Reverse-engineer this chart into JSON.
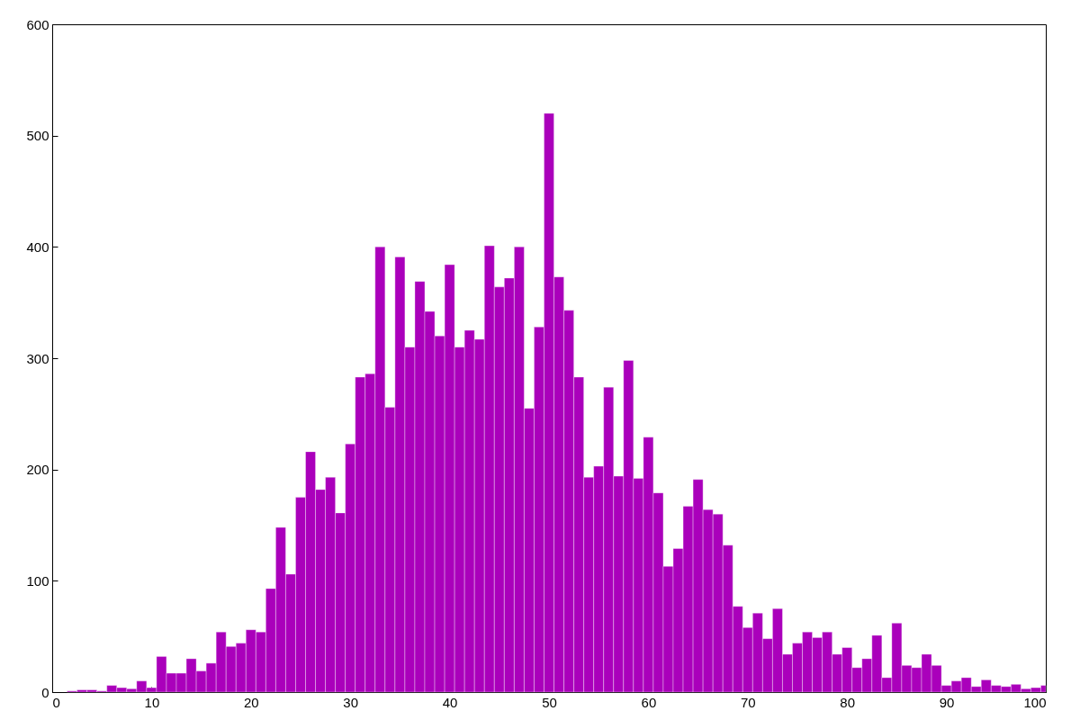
{
  "chart_data": {
    "type": "histogram",
    "bins": [
      1.5,
      2.5,
      3.5,
      4.5,
      5.5,
      6.5,
      7.5,
      8.5,
      9.5,
      10.5,
      11.5,
      12.5,
      13.5,
      14.5,
      15.5,
      16.5,
      17.5,
      18.5,
      19.5,
      20.5,
      21.5,
      22.5,
      23.5,
      24.5,
      25.5,
      26.5,
      27.5,
      28.5,
      29.5,
      30.5,
      31.5,
      32.5,
      33.5,
      34.5,
      35.5,
      36.5,
      37.5,
      38.5,
      39.5,
      40.5,
      41.5,
      42.5,
      43.5,
      44.5,
      45.5,
      46.5,
      47.5,
      48.5,
      49.5,
      50.5,
      51.5,
      52.5,
      53.5,
      54.5,
      55.5,
      56.5,
      57.5,
      58.5,
      59.5,
      60.5,
      61.5,
      62.5,
      63.5,
      64.5,
      65.5,
      66.5,
      67.5,
      68.5,
      69.5,
      70.5,
      71.5,
      72.5,
      73.5,
      74.5,
      75.5,
      76.5,
      77.5,
      78.5,
      79.5,
      80.5,
      81.5,
      82.5,
      83.5,
      84.5,
      85.5,
      86.5,
      87.5,
      88.5,
      89.5,
      90.5,
      91.5,
      92.5,
      93.5,
      94.5,
      95.5,
      96.5,
      97.5,
      98.5,
      99.5,
      100
    ],
    "values": [
      1,
      2,
      2,
      1,
      6,
      4,
      3,
      10,
      4,
      32,
      17,
      17,
      30,
      19,
      26,
      54,
      41,
      44,
      56,
      54,
      93,
      148,
      106,
      175,
      216,
      182,
      193,
      161,
      223,
      283,
      286,
      400,
      256,
      391,
      310,
      369,
      342,
      320,
      384,
      310,
      325,
      317,
      401,
      364,
      372,
      400,
      255,
      328,
      520,
      373,
      343,
      283,
      193,
      203,
      274,
      194,
      298,
      192,
      229,
      179,
      113,
      129,
      167,
      191,
      164,
      160,
      132,
      77,
      58,
      71,
      48,
      75,
      34,
      44,
      54,
      49,
      54,
      34,
      40,
      22,
      30,
      51,
      13,
      62,
      24,
      22,
      34,
      24,
      6,
      10,
      13,
      5,
      11,
      6,
      5,
      7,
      3,
      4,
      6
    ],
    "color": "#aa00bb",
    "xlim": [
      0,
      100
    ],
    "xticks": [
      0,
      10,
      20,
      30,
      40,
      50,
      60,
      70,
      80,
      90,
      100
    ],
    "ylim": [
      0,
      600
    ],
    "yticks": [
      0,
      100,
      200,
      300,
      400,
      500,
      600
    ]
  }
}
